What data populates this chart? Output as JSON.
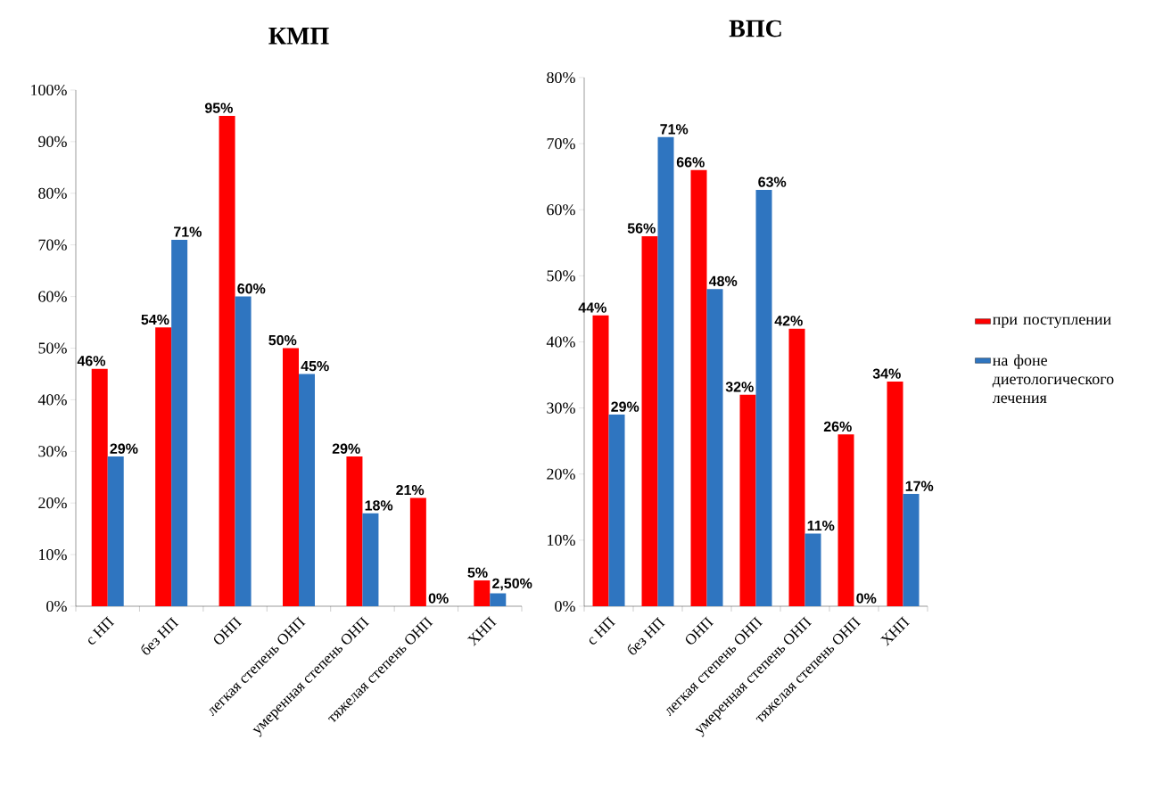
{
  "chart_data": [
    {
      "type": "bar",
      "title": "КМП",
      "categories": [
        "с НП",
        "без НП",
        "ОНП",
        "легкая степень ОНП",
        "умеренная степень ОНП",
        "тяжелая степень ОНП",
        "ХНП"
      ],
      "series": [
        {
          "color": "#ff0000",
          "values": [
            46,
            54,
            95,
            50,
            29,
            21,
            5
          ],
          "value_labels": [
            "46%",
            "54%",
            "95%",
            "50%",
            "29%",
            "21%",
            "5%"
          ]
        },
        {
          "color": "#2f75c0",
          "values": [
            29,
            71,
            60,
            45,
            18,
            0,
            2.5
          ],
          "value_labels": [
            "29%",
            "71%",
            "60%",
            "45%",
            "18%",
            "0%",
            "2,50%"
          ]
        }
      ],
      "ylim": [
        0,
        100
      ],
      "yticks": [
        {
          "value": 0,
          "label": "0%"
        },
        {
          "value": 10,
          "label": "10%"
        },
        {
          "value": 20,
          "label": "20%"
        },
        {
          "value": 30,
          "label": "30%"
        },
        {
          "value": 40,
          "label": "40%"
        },
        {
          "value": 50,
          "label": "50%"
        },
        {
          "value": 60,
          "label": "60%"
        },
        {
          "value": 70,
          "label": "70%"
        },
        {
          "value": 80,
          "label": "80%"
        },
        {
          "value": 90,
          "label": "90%"
        },
        {
          "value": 100,
          "label": "100%"
        }
      ]
    },
    {
      "type": "bar",
      "title": "ВПС",
      "categories": [
        "с НП",
        "без НП",
        "ОНП",
        "легкая степень ОНП",
        "умеренная степень ОНП",
        "тяжелая степень ОНП",
        "ХНП"
      ],
      "series": [
        {
          "name": "при поступлении",
          "color": "#ff0000",
          "values": [
            44,
            56,
            66,
            32,
            42,
            26,
            34
          ],
          "value_labels": [
            "44%",
            "56%",
            "66%",
            "32%",
            "42%",
            "26%",
            "34%"
          ]
        },
        {
          "name": "на фоне диетологического лечения",
          "color": "#2f75c0",
          "values": [
            29,
            71,
            48,
            63,
            11,
            0,
            17
          ],
          "value_labels": [
            "29%",
            "71%",
            "48%",
            "63%",
            "11%",
            "0%",
            "17%"
          ]
        }
      ],
      "ylim": [
        0,
        80
      ],
      "yticks": [
        {
          "value": 0,
          "label": "0%"
        },
        {
          "value": 10,
          "label": "10%"
        },
        {
          "value": 20,
          "label": "20%"
        },
        {
          "value": 30,
          "label": "30%"
        },
        {
          "value": 40,
          "label": "40%"
        },
        {
          "value": 50,
          "label": "50%"
        },
        {
          "value": 60,
          "label": "60%"
        },
        {
          "value": 70,
          "label": "70%"
        },
        {
          "value": 80,
          "label": "80%"
        }
      ],
      "legend": "right"
    }
  ]
}
